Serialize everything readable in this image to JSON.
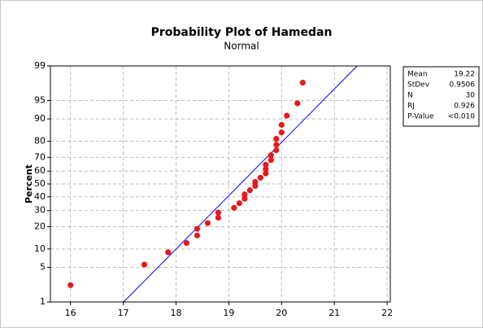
{
  "chart_data": {
    "type": "probability",
    "title": "Probability Plot of Hamedan",
    "subtitle": "Normal",
    "ylabel": "Percent",
    "scale": "normal",
    "grid": true,
    "color": "#e31a1c",
    "line_color": "#0000ff",
    "series": [
      {
        "x": [
          16.0,
          17.4,
          17.85,
          18.2,
          18.4,
          18.4,
          18.6,
          18.8,
          18.8,
          19.1,
          19.2,
          19.3,
          19.3,
          19.4,
          19.5,
          19.5,
          19.6,
          19.7,
          19.7,
          19.7,
          19.8,
          19.8,
          19.9,
          19.9,
          19.9,
          20.0,
          20.0,
          20.1,
          20.3,
          20.4
        ],
        "values": [
          2.3,
          5.6,
          8.9,
          12.2,
          15.5,
          18.8,
          22.0,
          25.3,
          28.6,
          31.9,
          35.2,
          38.5,
          41.8,
          45.1,
          48.4,
          51.6,
          54.9,
          58.2,
          61.5,
          64.8,
          68.1,
          71.4,
          74.7,
          78.0,
          81.3,
          84.5,
          87.8,
          91.1,
          94.4,
          97.7
        ]
      }
    ],
    "xlim": [
      15.62,
      22.06
    ],
    "xticks": [
      16,
      17,
      18,
      19,
      20,
      21,
      22
    ],
    "ylim": [
      1,
      99
    ],
    "yticks": [
      1,
      5,
      10,
      20,
      30,
      40,
      50,
      60,
      70,
      80,
      90,
      95,
      99
    ],
    "stats": [
      {
        "label": "Mean",
        "value": 19.22
      },
      {
        "label": "StDev",
        "value": 0.9506
      },
      {
        "label": "N",
        "value": 30
      },
      {
        "label": "RJ",
        "value": 0.926
      },
      {
        "label": "P-Value",
        "value": "<0.010"
      }
    ]
  }
}
